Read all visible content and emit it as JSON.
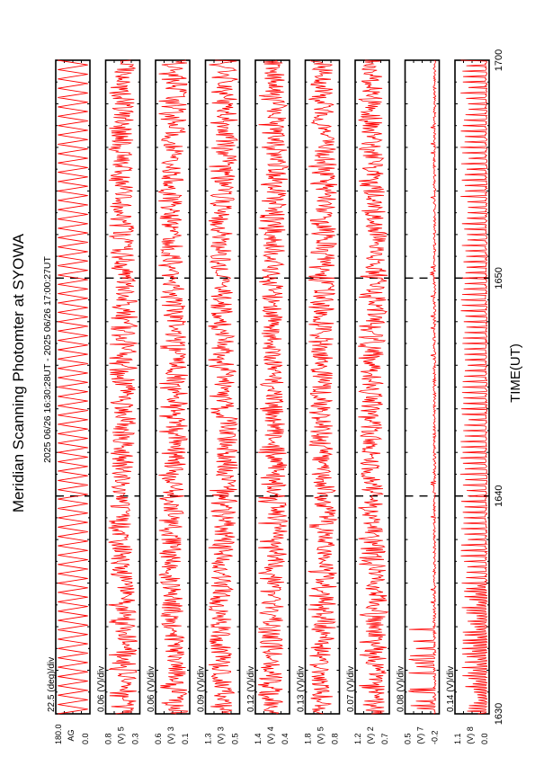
{
  "title": "Meridian Scanning Photomter at SYOWA",
  "time_range": "2025 06/26 16:30:28UT - 2025 06/26 17:00:27UT",
  "chart_data": {
    "type": "line",
    "title": "Meridian Scanning Photomter at SYOWA",
    "xlabel": "TIME(UT)",
    "x_ticks": [
      "1630",
      "1640",
      "1650",
      "1700"
    ],
    "xlim": [
      "1630",
      "1700"
    ],
    "line_color": "#ff0000",
    "panels": [
      {
        "scale": "22.5 (deg)/div",
        "units": "AG",
        "y_top": "180.0",
        "y_bottom": "0.0",
        "pattern": "sawtooth"
      },
      {
        "scale": "0.06 (V)/div",
        "units": "(V) 5",
        "y_top": "0.8",
        "y_bottom": "0.3",
        "pattern": "noise"
      },
      {
        "scale": "0.06 (V)/div",
        "units": "(V) 3",
        "y_top": "0.6",
        "y_bottom": "0.1",
        "pattern": "noise"
      },
      {
        "scale": "0.09 (V)/div",
        "units": "(V) 3",
        "y_top": "1.3",
        "y_bottom": "0.5",
        "pattern": "noise"
      },
      {
        "scale": "0.12 (V)/div",
        "units": "(V) 4",
        "y_top": "1.4",
        "y_bottom": "0.4",
        "pattern": "noise"
      },
      {
        "scale": "0.13 (V)/div",
        "units": "(V) 5",
        "y_top": "1.8",
        "y_bottom": "0.8",
        "pattern": "noise"
      },
      {
        "scale": "0.07 (V)/div",
        "units": "(V) 2",
        "y_top": "1.2",
        "y_bottom": "0.7",
        "pattern": "noise"
      },
      {
        "scale": "0.08 (V)/div",
        "units": "(V) 7",
        "y_top": "0.5",
        "y_bottom": "-0.2",
        "pattern": "spikes"
      },
      {
        "scale": "0.14 (V)/div",
        "units": "(V) 8",
        "y_top": "1.1",
        "y_bottom": "0.0",
        "pattern": "comb"
      }
    ]
  }
}
